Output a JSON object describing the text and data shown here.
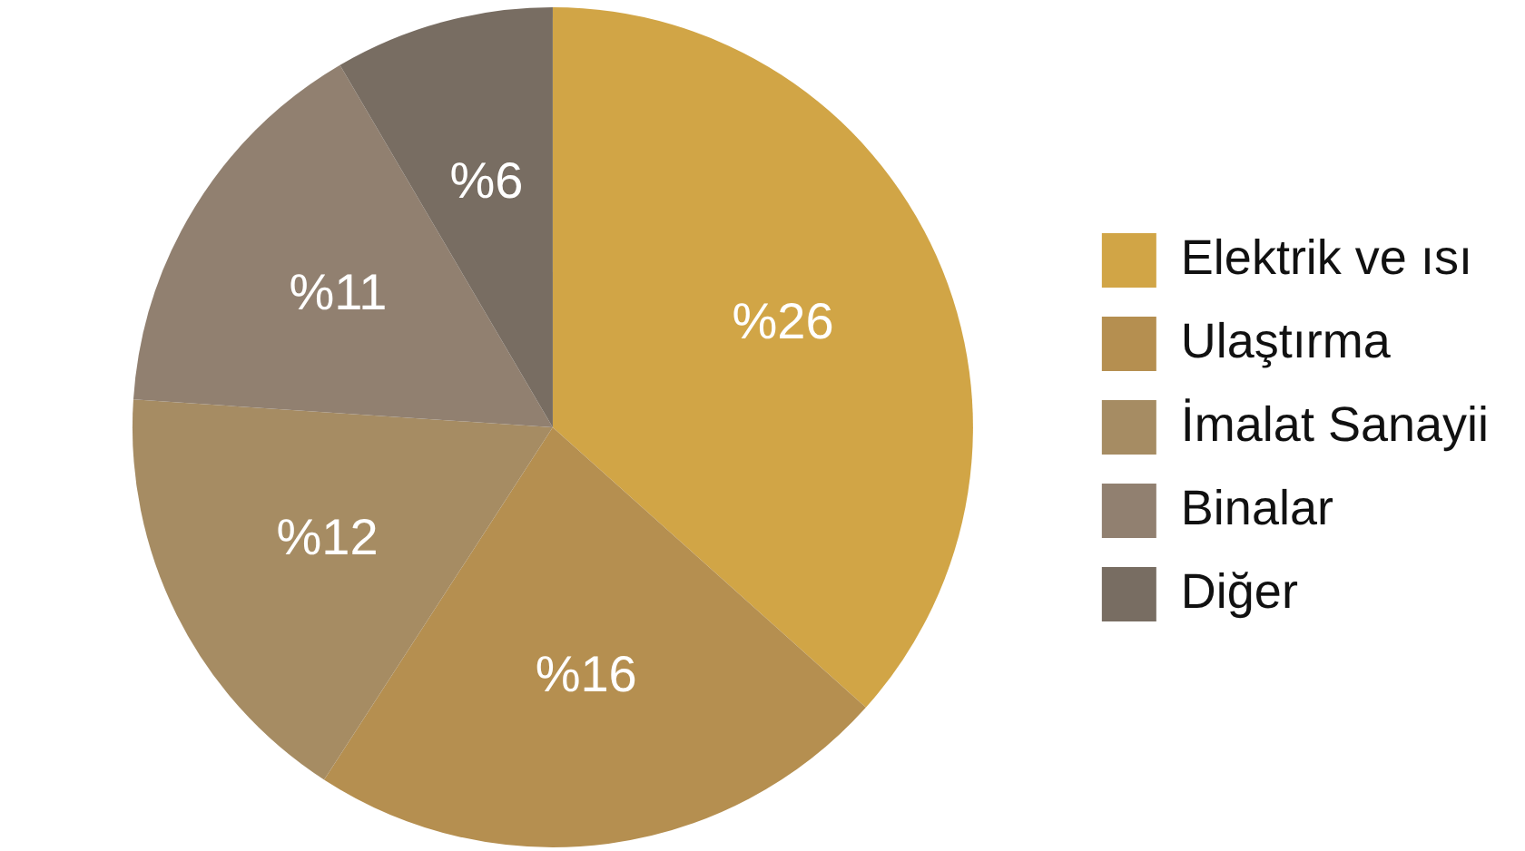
{
  "chart_data": {
    "type": "pie",
    "categories": [
      "Elektrik ve ısı",
      "Ulaştırma",
      "İmalat Sanayii",
      "Binalar",
      "Diğer"
    ],
    "values": [
      26,
      16,
      12,
      11,
      6
    ],
    "colors": [
      "#d1a546",
      "#b58f50",
      "#a68c63",
      "#918070",
      "#786d62"
    ],
    "value_labels": [
      "%26",
      "%16",
      "%12",
      "%11",
      "%6"
    ],
    "legend": "right"
  }
}
